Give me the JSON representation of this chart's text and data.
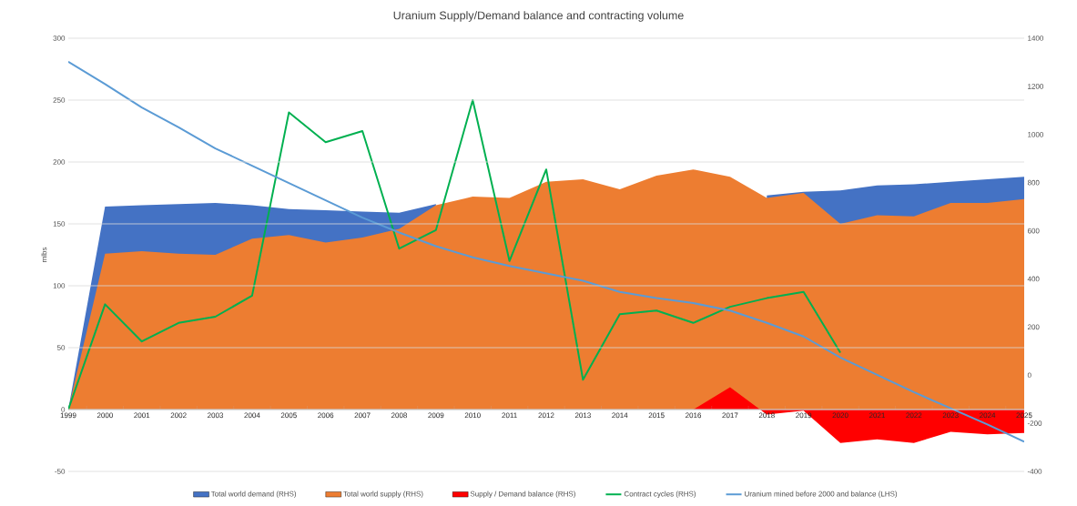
{
  "chart_data": {
    "type": "area",
    "title": "Uranium Supply/Demand balance and contracting volume",
    "ylabel": "mlbs",
    "categories": [
      "1999",
      "2000",
      "2001",
      "2002",
      "2003",
      "2004",
      "2005",
      "2006",
      "2007",
      "2008",
      "2009",
      "2010",
      "2011",
      "2012",
      "2013",
      "2014",
      "2015",
      "2016",
      "2017",
      "2018",
      "2019",
      "2020",
      "2021",
      "2022",
      "2023",
      "2024",
      "2025"
    ],
    "series": [
      {
        "name": "Total world demand (RHS)",
        "color": "#4472c4",
        "values": [
          0,
          164,
          165,
          166,
          167,
          165,
          162,
          161,
          160,
          159,
          166,
          null,
          null,
          null,
          null,
          null,
          null,
          null,
          null,
          173,
          176,
          177,
          181,
          182,
          184,
          186,
          188
        ]
      },
      {
        "name": "Total world supply (RHS)",
        "color": "#ed7d31",
        "values": [
          0,
          126,
          128,
          126,
          125,
          138,
          141,
          135,
          139,
          146,
          165,
          172,
          171,
          184,
          186,
          178,
          189,
          194,
          188,
          171,
          175,
          150,
          157,
          156,
          167,
          167,
          170
        ]
      },
      {
        "name": "Supply / Demand balance (RHS)",
        "color": "#ff0000",
        "values": [
          0,
          0,
          0,
          0,
          0,
          0,
          0,
          0,
          0,
          0,
          0,
          0,
          0,
          0,
          0,
          0,
          0,
          0,
          18,
          -4,
          -1,
          -27,
          -24,
          -27,
          -18,
          -20,
          -19
        ]
      },
      {
        "name": "Contract cycles (RHS)",
        "type": "line",
        "color": "#00b050",
        "values": [
          0,
          85,
          55,
          70,
          75,
          92,
          240,
          216,
          225,
          130,
          145,
          250,
          120,
          194,
          24,
          77,
          80,
          70,
          83,
          90,
          95,
          46,
          null,
          null,
          null,
          null,
          null
        ]
      },
      {
        "name": "Uranium mined before 2000 and balance (LHS)",
        "type": "line",
        "color": "#5b9bd5",
        "values": [
          281,
          263,
          244,
          228,
          211,
          197,
          183,
          169,
          155,
          143,
          132,
          123,
          116,
          110,
          104,
          95,
          90,
          86,
          80,
          70,
          59,
          42,
          28,
          14,
          1,
          -12,
          -26
        ]
      }
    ],
    "ylim": [
      -50,
      300
    ],
    "yticks": [
      -50,
      0,
      50,
      100,
      150,
      200,
      250,
      300
    ],
    "y2lim": [
      -400,
      1400
    ],
    "y2ticks": [
      -400,
      -200,
      0,
      200,
      400,
      600,
      800,
      1000,
      1200,
      1400
    ],
    "grid": "y",
    "legend": "bottom"
  }
}
